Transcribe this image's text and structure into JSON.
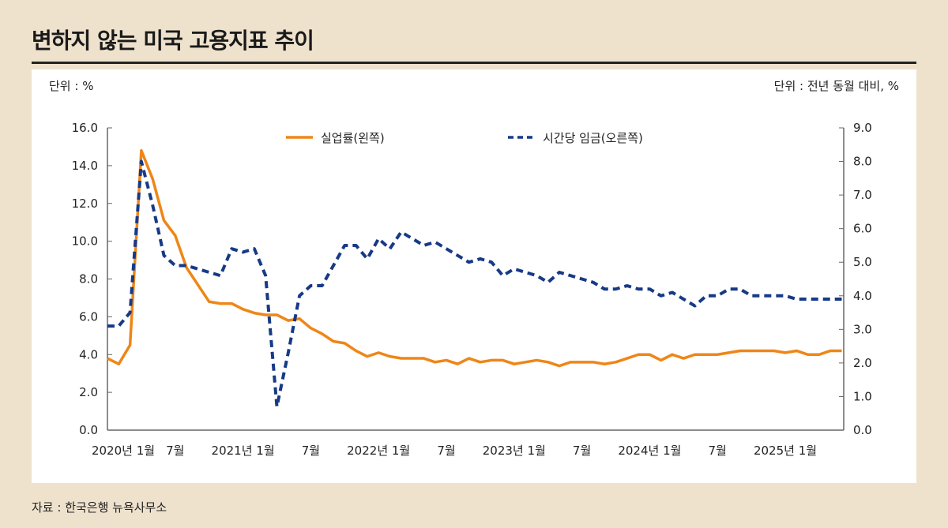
{
  "title": "변하지 않는 미국 고용지표 추이",
  "unit_left": "단위 : %",
  "unit_right": "단위 : 전년 동월 대비, %",
  "source": "자료 : 한국은행 뉴욕사무소",
  "chart_data": {
    "type": "line",
    "x_start": "2020-01",
    "x_frequency": "monthly",
    "x_ticks": [
      "2020년 1월",
      "7월",
      "2021년 1월",
      "7월",
      "2022년 1월",
      "7월",
      "2023년 1월",
      "7월",
      "2024년 1월",
      "7월",
      "2025년 1월"
    ],
    "y_left": {
      "ylim": [
        0,
        16
      ],
      "ticks": [
        "0.0",
        "2.0",
        "4.0",
        "6.0",
        "8.0",
        "10.0",
        "12.0",
        "14.0",
        "16.0"
      ]
    },
    "y_right": {
      "ylim": [
        0,
        9
      ],
      "ticks": [
        "0.0",
        "1.0",
        "2.0",
        "3.0",
        "4.0",
        "5.0",
        "6.0",
        "7.0",
        "8.0",
        "9.0"
      ]
    },
    "grid": false,
    "legend": "top",
    "series": [
      {
        "name": "실업률(왼쪽)",
        "axis": "left",
        "color": "#ee8618",
        "style": "solid",
        "values": [
          3.8,
          3.5,
          4.5,
          14.8,
          13.3,
          11.1,
          10.3,
          8.6,
          7.7,
          6.8,
          6.7,
          6.7,
          6.4,
          6.2,
          6.1,
          6.1,
          5.8,
          5.9,
          5.4,
          5.1,
          4.7,
          4.6,
          4.2,
          3.9,
          4.1,
          3.9,
          3.8,
          3.8,
          3.8,
          3.6,
          3.7,
          3.5,
          3.8,
          3.6,
          3.7,
          3.7,
          3.5,
          3.6,
          3.7,
          3.6,
          3.4,
          3.6,
          3.6,
          3.6,
          3.5,
          3.6,
          3.8,
          4.0,
          4.0,
          3.7,
          4.0,
          3.8,
          4.0,
          4.0,
          4.0,
          4.1,
          4.2,
          4.2,
          4.2,
          4.2,
          4.1,
          4.2,
          4.0,
          4.0,
          4.2,
          4.2
        ]
      },
      {
        "name": "시간당 임금(오른쪽)",
        "axis": "right",
        "color": "#173a87",
        "style": "dashed",
        "values": [
          3.1,
          3.1,
          3.5,
          8.0,
          6.7,
          5.2,
          4.9,
          4.9,
          4.8,
          4.7,
          4.6,
          5.4,
          5.3,
          5.4,
          4.6,
          0.7,
          2.3,
          4.0,
          4.3,
          4.3,
          4.9,
          5.5,
          5.5,
          5.1,
          5.7,
          5.4,
          5.9,
          5.7,
          5.5,
          5.6,
          5.4,
          5.2,
          5.0,
          5.1,
          5.0,
          4.6,
          4.8,
          4.7,
          4.6,
          4.4,
          4.7,
          4.6,
          4.5,
          4.4,
          4.2,
          4.2,
          4.3,
          4.2,
          4.2,
          4.0,
          4.1,
          3.9,
          3.7,
          4.0,
          4.0,
          4.2,
          4.2,
          4.0,
          4.0,
          4.0,
          4.0,
          3.9,
          3.9,
          3.9,
          3.9,
          3.9
        ]
      }
    ]
  }
}
